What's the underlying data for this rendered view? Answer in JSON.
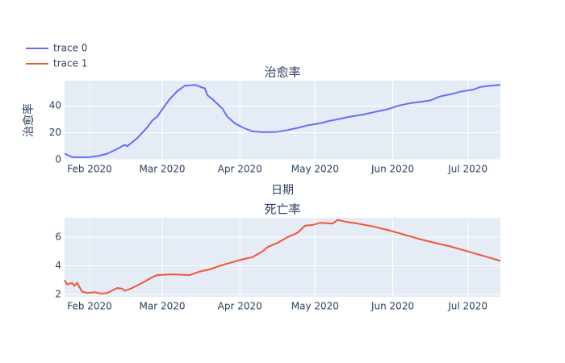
{
  "chart_data": [
    {
      "type": "line",
      "title": "治愈率",
      "xlabel": "日期",
      "ylabel": "治愈率",
      "grid": true,
      "x": [
        "2020-01-22",
        "2020-01-25",
        "2020-01-28",
        "2020-02-01",
        "2020-02-05",
        "2020-02-08",
        "2020-02-12",
        "2020-02-15",
        "2020-02-16",
        "2020-02-20",
        "2020-02-24",
        "2020-02-26",
        "2020-02-28",
        "2020-03-02",
        "2020-03-04",
        "2020-03-07",
        "2020-03-10",
        "2020-03-14",
        "2020-03-18",
        "2020-03-19",
        "2020-03-21",
        "2020-03-25",
        "2020-03-27",
        "2020-03-30",
        "2020-04-02",
        "2020-04-06",
        "2020-04-10",
        "2020-04-15",
        "2020-04-20",
        "2020-04-25",
        "2020-04-28",
        "2020-05-03",
        "2020-05-06",
        "2020-05-10",
        "2020-05-15",
        "2020-05-20",
        "2020-05-25",
        "2020-05-30",
        "2020-06-03",
        "2020-06-08",
        "2020-06-12",
        "2020-06-16",
        "2020-06-20",
        "2020-06-25",
        "2020-06-28",
        "2020-07-03",
        "2020-07-06",
        "2020-07-10",
        "2020-07-14"
      ],
      "series": [
        {
          "name": "trace 0",
          "color": "#636efa",
          "values": [
            4.5,
            2,
            1.8,
            2,
            3,
            4.5,
            8,
            11,
            10,
            16,
            24,
            29,
            32,
            40,
            45,
            51,
            55,
            55.5,
            53,
            48,
            45,
            38,
            32,
            27,
            24,
            21,
            20.5,
            20.5,
            22,
            24,
            25.5,
            27,
            28.5,
            30,
            32,
            33.5,
            35.5,
            37.5,
            40,
            42,
            43,
            44,
            47,
            49,
            50.5,
            52,
            54,
            55,
            55.5
          ]
        }
      ],
      "xlim": [
        "2020-01-22",
        "2020-07-14"
      ],
      "xticks": [
        {
          "value": "2020-02-01",
          "label": "Feb 2020"
        },
        {
          "value": "2020-03-01",
          "label": "Mar 2020"
        },
        {
          "value": "2020-04-01",
          "label": "Apr 2020"
        },
        {
          "value": "2020-05-01",
          "label": "May 2020"
        },
        {
          "value": "2020-06-01",
          "label": "Jun 2020"
        },
        {
          "value": "2020-07-01",
          "label": "Jul 2020"
        }
      ],
      "ylim": [
        0,
        58.7
      ],
      "yticks": [
        0,
        20,
        40
      ]
    },
    {
      "type": "line",
      "title": "死亡率",
      "grid": true,
      "x": [
        "2020-01-22",
        "2020-01-23",
        "2020-01-25",
        "2020-01-26",
        "2020-01-27",
        "2020-01-29",
        "2020-01-31",
        "2020-02-03",
        "2020-02-06",
        "2020-02-08",
        "2020-02-12",
        "2020-02-14",
        "2020-02-15",
        "2020-02-18",
        "2020-02-22",
        "2020-02-24",
        "2020-02-26",
        "2020-02-28",
        "2020-03-05",
        "2020-03-12",
        "2020-03-16",
        "2020-03-20",
        "2020-03-24",
        "2020-03-28",
        "2020-04-02",
        "2020-04-06",
        "2020-04-10",
        "2020-04-12",
        "2020-04-16",
        "2020-04-20",
        "2020-04-24",
        "2020-04-27",
        "2020-04-30",
        "2020-05-03",
        "2020-05-08",
        "2020-05-10",
        "2020-05-14",
        "2020-05-18",
        "2020-05-24",
        "2020-05-30",
        "2020-06-03",
        "2020-06-08",
        "2020-06-12",
        "2020-06-18",
        "2020-06-24",
        "2020-06-30",
        "2020-07-06",
        "2020-07-14"
      ],
      "series": [
        {
          "name": "trace 1",
          "color": "#EF553B",
          "values": [
            3.0,
            2.7,
            2.8,
            2.6,
            2.8,
            2.2,
            2.1,
            2.15,
            2.05,
            2.1,
            2.45,
            2.4,
            2.25,
            2.45,
            2.8,
            3.0,
            3.2,
            3.35,
            3.4,
            3.35,
            3.6,
            3.75,
            4.0,
            4.2,
            4.45,
            4.6,
            5.0,
            5.3,
            5.6,
            6.0,
            6.3,
            6.8,
            6.85,
            7.0,
            6.95,
            7.2,
            7.05,
            6.95,
            6.75,
            6.5,
            6.3,
            6.05,
            5.85,
            5.6,
            5.35,
            5.05,
            4.75,
            4.35
          ]
        }
      ],
      "xlim": [
        "2020-01-22",
        "2020-07-14"
      ],
      "xticks": [
        {
          "value": "2020-02-01",
          "label": "Feb 2020"
        },
        {
          "value": "2020-03-01",
          "label": "Mar 2020"
        },
        {
          "value": "2020-04-01",
          "label": "Apr 2020"
        },
        {
          "value": "2020-05-01",
          "label": "May 2020"
        },
        {
          "value": "2020-06-01",
          "label": "Jun 2020"
        },
        {
          "value": "2020-07-01",
          "label": "Jul 2020"
        }
      ],
      "ylim": [
        1.83,
        7.35
      ],
      "yticks": [
        2,
        4,
        6
      ]
    }
  ]
}
